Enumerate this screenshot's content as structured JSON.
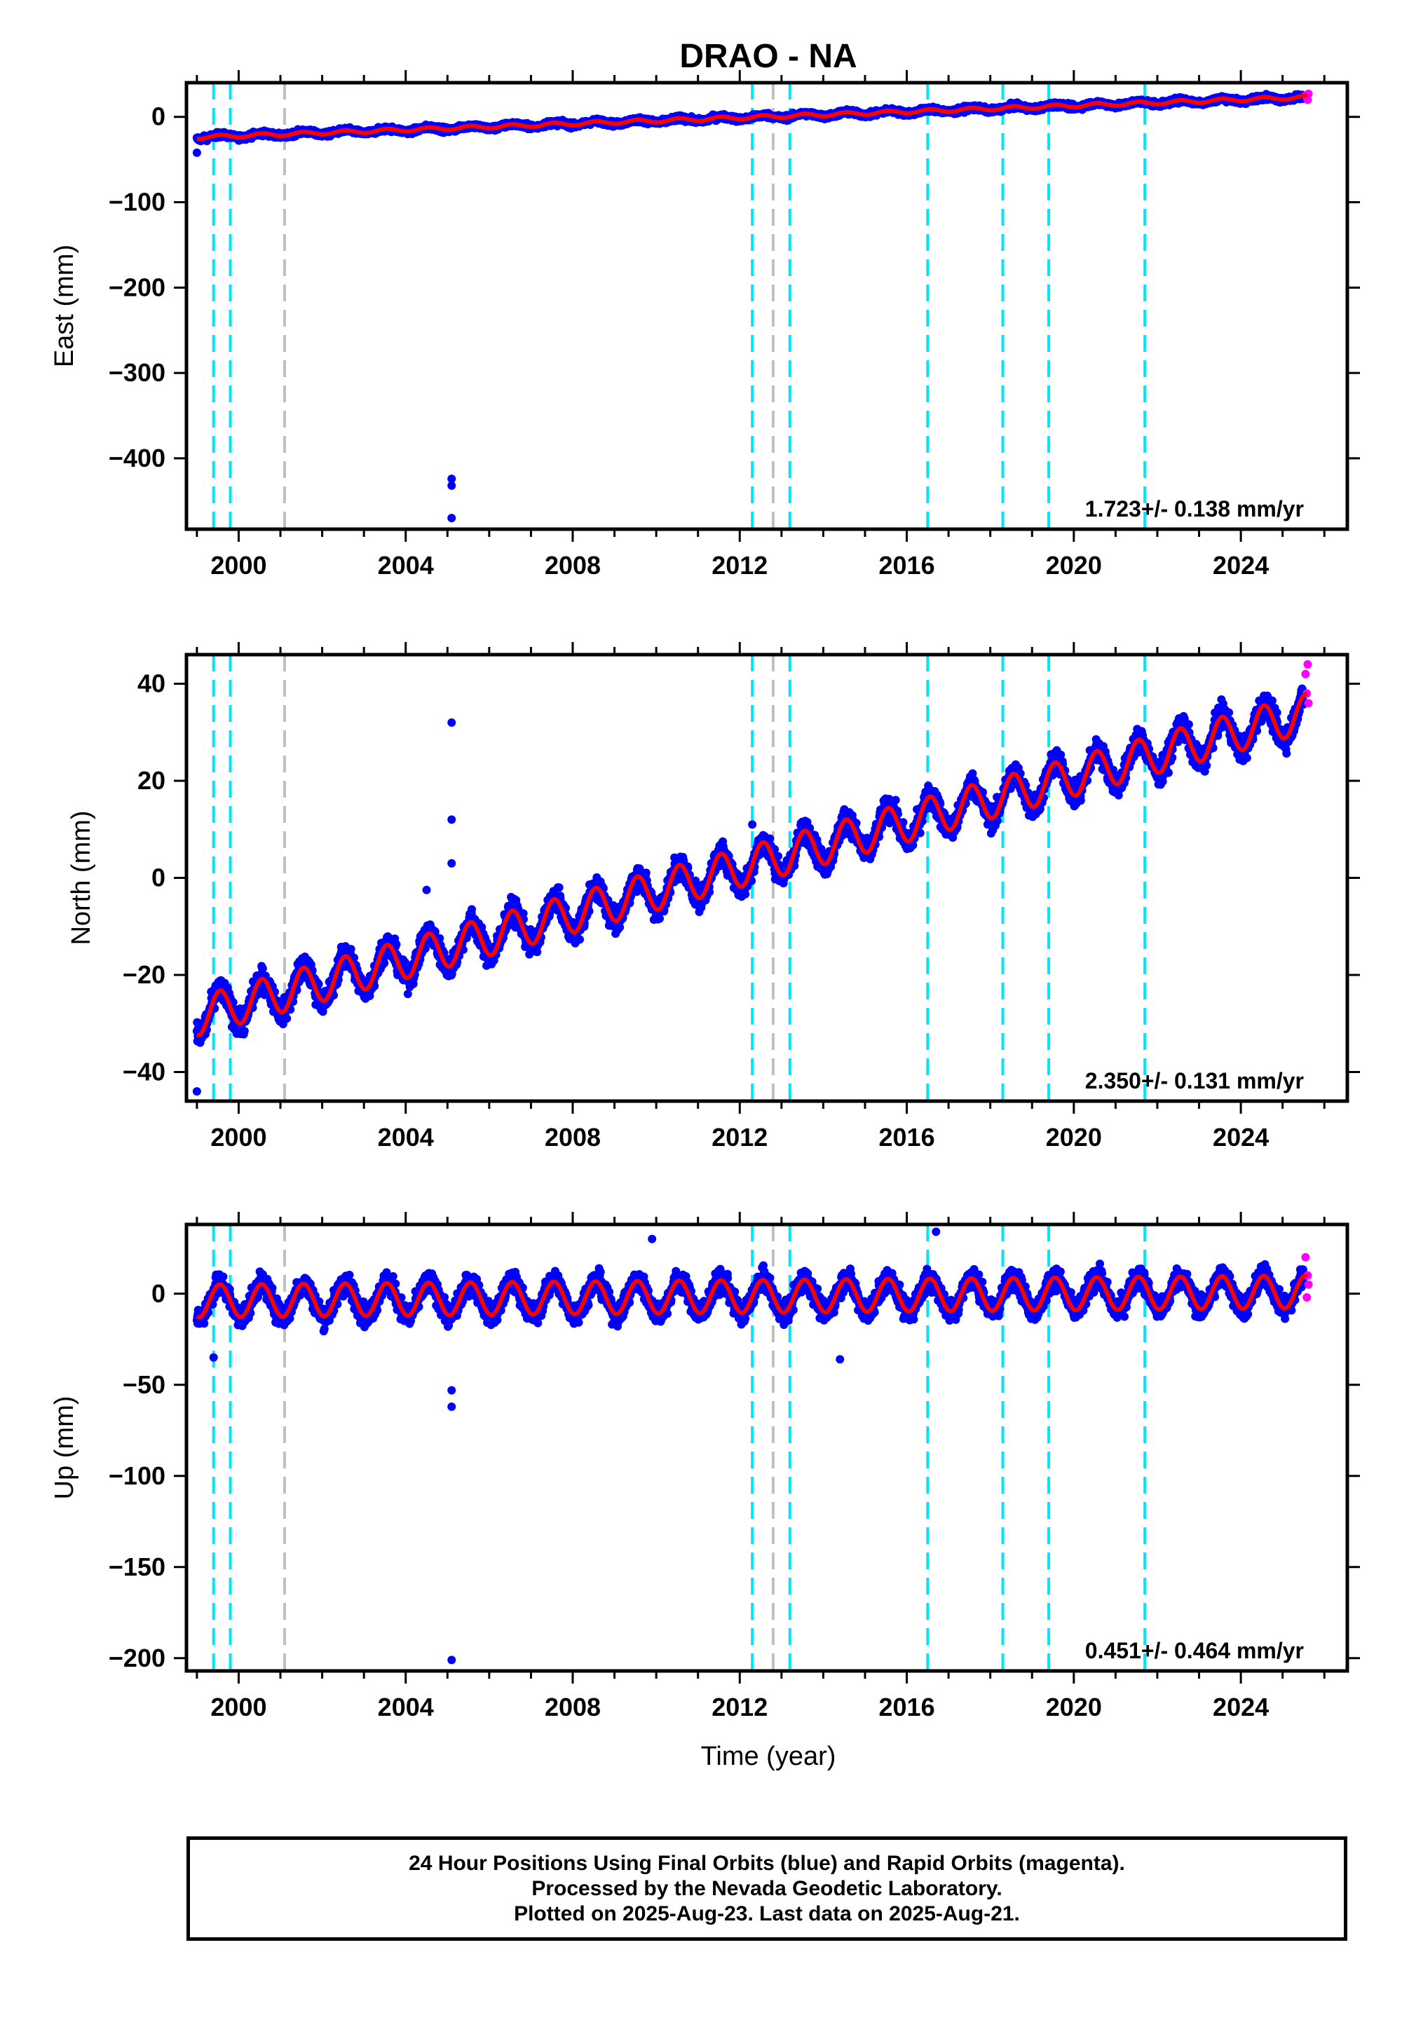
{
  "title": "DRAO - NA",
  "xlabel": "Time (year)",
  "colors": {
    "final_points": "#0000ff",
    "rapid_points": "#ff00ff",
    "model_line": "#ff0000",
    "equipment_change": "#00e5ff",
    "other_event": "#c0c0c0"
  },
  "footer": {
    "line1": "24 Hour Positions Using Final Orbits (blue) and Rapid Orbits (magenta).",
    "line2": "Processed by the Nevada Geodetic Laboratory.",
    "line3": "Plotted on 2025-Aug-23. Last data on 2025-Aug-21."
  },
  "chart_data": [
    {
      "type": "scatter",
      "component": "east",
      "ylabel": "East (mm)",
      "xlim": [
        1998.75,
        2026.55
      ],
      "ylim": [
        -483,
        40
      ],
      "xticks": [
        2000,
        2004,
        2008,
        2012,
        2016,
        2020,
        2024
      ],
      "yticks": [
        0,
        -100,
        -200,
        -300,
        -400
      ],
      "rate_label": "1.723+/- 0.138 mm/yr",
      "trend": {
        "start": [
          1999.0,
          -24
        ],
        "end": [
          2025.6,
          23
        ]
      },
      "seasonal_amplitude": 2,
      "scatter_spread": 3,
      "outliers": [
        [
          2005.1,
          -424
        ],
        [
          2005.1,
          -432
        ],
        [
          2005.1,
          -470
        ],
        [
          1999.0,
          -42
        ]
      ],
      "rapid_points": [
        [
          2025.55,
          25
        ],
        [
          2025.6,
          20
        ],
        [
          2025.62,
          27
        ]
      ],
      "equipment_changes": [
        1999.4,
        1999.8,
        2012.3,
        2013.2,
        2016.5,
        2018.3,
        2019.4,
        2021.7
      ],
      "other_events": [
        2001.1,
        2012.8
      ]
    },
    {
      "type": "scatter",
      "component": "north",
      "ylabel": "North (mm)",
      "xlim": [
        1998.75,
        2026.55
      ],
      "ylim": [
        -46,
        46
      ],
      "xticks": [
        2000,
        2004,
        2008,
        2012,
        2016,
        2020,
        2024
      ],
      "yticks": [
        40,
        20,
        0,
        -20,
        -40
      ],
      "rate_label": "2.350+/- 0.131 mm/yr",
      "trend": {
        "start": [
          1999.0,
          -28.5
        ],
        "end": [
          2025.6,
          34
        ]
      },
      "seasonal_amplitude": 4,
      "scatter_spread": 2.5,
      "outliers": [
        [
          2005.1,
          32
        ],
        [
          2005.1,
          12
        ],
        [
          2005.1,
          3
        ],
        [
          2004.5,
          -2.5
        ],
        [
          1999.0,
          -44
        ],
        [
          2012.3,
          11
        ]
      ],
      "rapid_points": [
        [
          2025.55,
          42
        ],
        [
          2025.6,
          44
        ],
        [
          2025.62,
          36
        ],
        [
          2025.58,
          38
        ]
      ],
      "equipment_changes": [
        1999.4,
        1999.8,
        2012.3,
        2013.2,
        2016.5,
        2018.3,
        2019.4,
        2021.7
      ],
      "other_events": [
        2001.1,
        2012.8
      ]
    },
    {
      "type": "scatter",
      "component": "up",
      "ylabel": "Up (mm)",
      "xlim": [
        1998.75,
        2026.55
      ],
      "ylim": [
        -207,
        38
      ],
      "xticks": [
        2000,
        2004,
        2008,
        2012,
        2016,
        2020,
        2024
      ],
      "yticks": [
        0,
        -50,
        -100,
        -150,
        -200
      ],
      "rate_label": "0.451+/- 0.464 mm/yr",
      "trend": {
        "start": [
          1999.0,
          -4
        ],
        "end": [
          2025.6,
          1
        ]
      },
      "seasonal_amplitude": 9,
      "scatter_spread": 6,
      "outliers": [
        [
          2005.1,
          -53
        ],
        [
          2005.1,
          -62
        ],
        [
          2005.1,
          -201
        ],
        [
          2009.9,
          30
        ],
        [
          2016.7,
          34
        ],
        [
          2014.4,
          -36
        ],
        [
          1999.4,
          -35
        ]
      ],
      "rapid_points": [
        [
          2025.55,
          20
        ],
        [
          2025.6,
          10
        ],
        [
          2025.62,
          5
        ],
        [
          2025.58,
          -2
        ]
      ],
      "equipment_changes": [
        1999.4,
        1999.8,
        2012.3,
        2013.2,
        2016.5,
        2018.3,
        2019.4,
        2021.7
      ],
      "other_events": [
        2001.1,
        2012.8
      ]
    }
  ]
}
